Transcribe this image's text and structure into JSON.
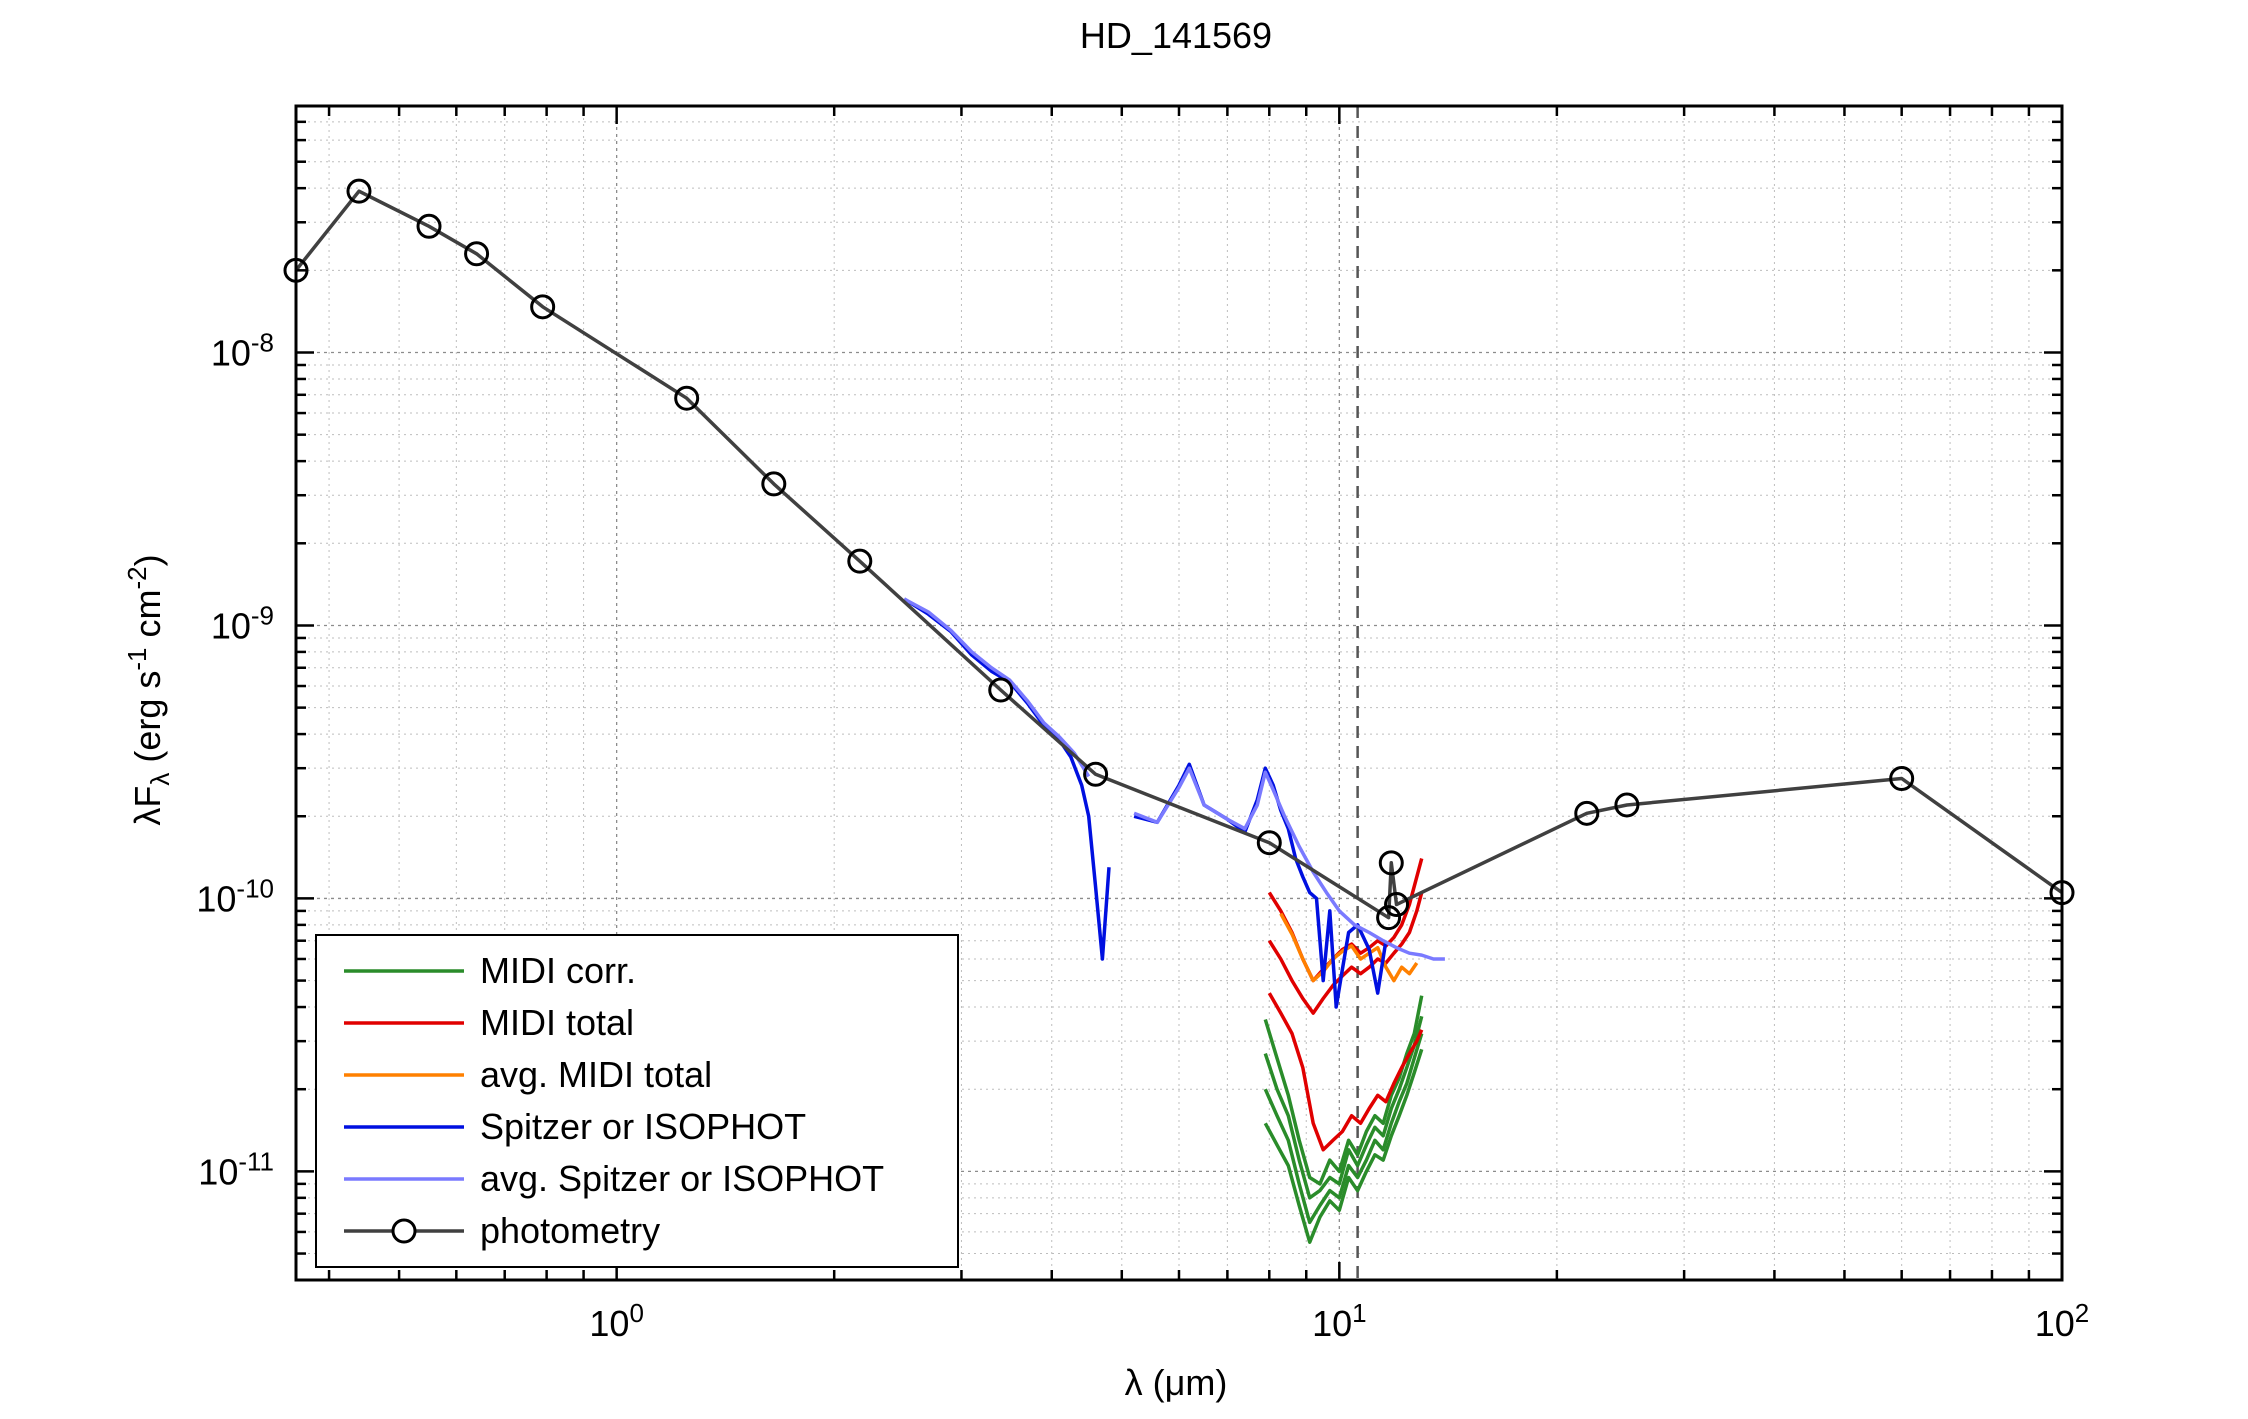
{
  "chart_data": {
    "type": "line",
    "title": "HD_141569",
    "xlabel": "λ (μm)",
    "ylabel": "λF_λ (erg s^-1 cm^-2)",
    "xscale": "log",
    "yscale": "log",
    "xlim": [
      0.36,
      100
    ],
    "ylim": [
      4e-12,
      8e-08
    ],
    "x_ticks": [
      {
        "value": 1,
        "base": "10",
        "exp": "0"
      },
      {
        "value": 10,
        "base": "10",
        "exp": "1"
      },
      {
        "value": 100,
        "base": "10",
        "exp": "2"
      }
    ],
    "y_ticks": [
      {
        "value": 1e-08,
        "base": "10",
        "exp": "-8"
      },
      {
        "value": 1e-09,
        "base": "10",
        "exp": "-9"
      },
      {
        "value": 1e-10,
        "base": "10",
        "exp": "-10"
      },
      {
        "value": 1e-11,
        "base": "10",
        "exp": "-11"
      }
    ],
    "grid": true,
    "legend_position": "bottom-left",
    "vline": {
      "x": 10.6,
      "style": "dashed",
      "color": "#555555"
    },
    "series": [
      {
        "name": "photometry",
        "color": "#404040",
        "marker": "circle",
        "x": [
          0.36,
          0.44,
          0.55,
          0.64,
          0.79,
          1.25,
          1.65,
          2.17,
          3.4,
          4.6,
          8.0,
          11.7,
          11.8,
          12.0,
          22.0,
          25.0,
          60.0,
          100.0
        ],
        "y": [
          2e-08,
          3.9e-08,
          2.9e-08,
          2.3e-08,
          1.47e-08,
          6.8e-09,
          3.3e-09,
          1.72e-09,
          5.8e-10,
          2.85e-10,
          1.6e-10,
          8.5e-11,
          1.35e-10,
          9.5e-11,
          2.05e-10,
          2.2e-10,
          2.75e-10,
          1.05e-10
        ]
      },
      {
        "name": "MIDI corr.",
        "color": "#2a8c2a",
        "lines": [
          {
            "x": [
              7.9,
              8.2,
              8.5,
              8.8,
              9.1,
              9.4,
              9.7,
              10.0,
              10.3,
              10.6,
              10.9,
              11.2,
              11.5,
              11.8,
              12.1,
              12.4,
              12.7,
              13.0
            ],
            "y": [
              3.6e-11,
              2.6e-11,
              1.9e-11,
              1.3e-11,
              9.5e-12,
              9e-12,
              1.1e-11,
              1e-11,
              1.3e-11,
              1.15e-11,
              1.4e-11,
              1.6e-11,
              1.5e-11,
              1.9e-11,
              2.2e-11,
              2.7e-11,
              3.2e-11,
              4.4e-11
            ]
          },
          {
            "x": [
              7.9,
              8.2,
              8.5,
              8.8,
              9.1,
              9.4,
              9.7,
              10.0,
              10.3,
              10.6,
              10.9,
              11.2,
              11.5,
              11.8,
              12.1,
              12.4,
              12.7,
              13.0
            ],
            "y": [
              2.7e-11,
              2e-11,
              1.6e-11,
              1.1e-11,
              8e-12,
              8.5e-12,
              9.5e-12,
              9e-12,
              1.2e-11,
              1.05e-11,
              1.25e-11,
              1.45e-11,
              1.35e-11,
              1.7e-11,
              2e-11,
              2.4e-11,
              2.9e-11,
              3.7e-11
            ]
          },
          {
            "x": [
              7.9,
              8.2,
              8.5,
              8.8,
              9.1,
              9.4,
              9.7,
              10.0,
              10.3,
              10.6,
              10.9,
              11.2,
              11.5,
              11.8,
              12.1,
              12.4,
              12.7,
              13.0
            ],
            "y": [
              2e-11,
              1.6e-11,
              1.3e-11,
              9e-12,
              6.5e-12,
              7.5e-12,
              8.5e-12,
              8e-12,
              1.05e-11,
              9.5e-12,
              1.1e-11,
              1.3e-11,
              1.2e-11,
              1.5e-11,
              1.8e-11,
              2.1e-11,
              2.6e-11,
              3.2e-11
            ]
          },
          {
            "x": [
              7.9,
              8.2,
              8.5,
              8.8,
              9.1,
              9.4,
              9.7,
              10.0,
              10.3,
              10.6,
              10.9,
              11.2,
              11.5,
              11.8,
              12.1,
              12.4,
              12.7,
              13.0
            ],
            "y": [
              1.5e-11,
              1.25e-11,
              1.05e-11,
              7.5e-12,
              5.5e-12,
              6.8e-12,
              7.8e-12,
              7.2e-12,
              9.5e-12,
              8.5e-12,
              1e-11,
              1.15e-11,
              1.1e-11,
              1.35e-11,
              1.6e-11,
              1.9e-11,
              2.3e-11,
              2.8e-11
            ]
          }
        ]
      },
      {
        "name": "MIDI total",
        "color": "#e00000",
        "lines": [
          {
            "x": [
              8.0,
              8.3,
              8.6,
              8.9,
              9.2,
              9.5,
              9.8,
              10.1,
              10.4,
              10.7,
              11.0,
              11.3,
              11.6,
              11.9,
              12.2,
              12.5,
              12.8,
              13.0
            ],
            "y": [
              1.05e-10,
              9e-11,
              7.5e-11,
              6e-11,
              5e-11,
              5.5e-11,
              6e-11,
              6.5e-11,
              6.8e-11,
              6.3e-11,
              6.6e-11,
              7e-11,
              6.7e-11,
              7.2e-11,
              8e-11,
              9.5e-11,
              1.2e-10,
              1.4e-10
            ]
          },
          {
            "x": [
              8.0,
              8.3,
              8.6,
              8.9,
              9.2,
              9.5,
              9.8,
              10.1,
              10.4,
              10.7,
              11.0,
              11.3,
              11.6,
              11.9,
              12.2,
              12.5,
              12.8,
              13.0
            ],
            "y": [
              7e-11,
              6e-11,
              5e-11,
              4.3e-11,
              3.8e-11,
              4.3e-11,
              4.8e-11,
              5.2e-11,
              5.6e-11,
              5.3e-11,
              5.6e-11,
              6e-11,
              5.8e-11,
              6.3e-11,
              6.8e-11,
              7.5e-11,
              9e-11,
              1.05e-10
            ]
          },
          {
            "x": [
              8.0,
              8.3,
              8.6,
              8.9,
              9.2,
              9.5,
              9.8,
              10.1,
              10.4,
              10.7,
              11.0,
              11.3,
              11.6,
              11.9,
              12.2,
              12.5,
              12.8,
              13.0
            ],
            "y": [
              4.5e-11,
              3.8e-11,
              3.2e-11,
              2.4e-11,
              1.5e-11,
              1.2e-11,
              1.3e-11,
              1.4e-11,
              1.6e-11,
              1.5e-11,
              1.7e-11,
              1.9e-11,
              1.8e-11,
              2.1e-11,
              2.4e-11,
              2.7e-11,
              3e-11,
              3.3e-11
            ]
          }
        ]
      },
      {
        "name": "avg. MIDI total",
        "color": "#ff8000",
        "lines": [
          {
            "x": [
              8.3,
              8.6,
              8.9,
              9.2,
              9.5,
              9.8,
              10.1,
              10.4,
              10.7,
              11.0,
              11.3,
              11.6,
              11.9,
              12.2,
              12.5,
              12.8
            ],
            "y": [
              8.8e-11,
              7.4e-11,
              6e-11,
              5e-11,
              5.4e-11,
              6e-11,
              6.4e-11,
              6.7e-11,
              6e-11,
              6.3e-11,
              6.6e-11,
              5.6e-11,
              5e-11,
              5.6e-11,
              5.3e-11,
              5.8e-11
            ]
          }
        ]
      },
      {
        "name": "Spitzer or ISOPHOT",
        "color": "#0010e0",
        "lines": [
          {
            "x": [
              2.5,
              2.7,
              2.9,
              3.1,
              3.3,
              3.5,
              3.7,
              3.9,
              4.1,
              4.25,
              4.4,
              4.5,
              4.6,
              4.7,
              4.8
            ],
            "y": [
              1.25e-09,
              1.1e-09,
              9.5e-10,
              7.8e-10,
              6.8e-10,
              6.2e-10,
              5.2e-10,
              4.3e-10,
              3.8e-10,
              3.3e-10,
              2.6e-10,
              2e-10,
              1.1e-10,
              6e-11,
              1.3e-10
            ]
          },
          {
            "x": [
              5.2,
              5.6,
              6.0,
              6.2,
              6.5,
              7.0,
              7.4,
              7.7,
              7.9,
              8.1,
              8.3,
              8.5,
              8.7,
              8.9,
              9.1,
              9.3,
              9.5,
              9.7,
              9.9,
              10.1,
              10.3,
              10.6,
              11.0,
              11.3,
              11.6
            ],
            "y": [
              2e-10,
              1.9e-10,
              2.6e-10,
              3.1e-10,
              2.2e-10,
              1.95e-10,
              1.75e-10,
              2.3e-10,
              3e-10,
              2.6e-10,
              2.1e-10,
              1.8e-10,
              1.4e-10,
              1.2e-10,
              1.05e-10,
              1e-10,
              5e-11,
              9e-11,
              4e-11,
              5.5e-11,
              7.5e-11,
              8e-11,
              6.5e-11,
              4.5e-11,
              7e-11
            ]
          }
        ]
      },
      {
        "name": "avg. Spitzer or ISOPHOT",
        "color": "#7a7aff",
        "lines": [
          {
            "x": [
              2.5,
              2.7,
              2.9,
              3.1,
              3.3,
              3.5,
              3.7,
              3.9,
              4.1,
              4.3,
              4.5
            ],
            "y": [
              1.25e-09,
              1.12e-09,
              9.6e-10,
              8e-10,
              7e-10,
              6.3e-10,
              5.3e-10,
              4.4e-10,
              3.9e-10,
              3.4e-10,
              2.8e-10
            ]
          },
          {
            "x": [
              5.2,
              5.6,
              6.0,
              6.2,
              6.5,
              7.0,
              7.4,
              7.7,
              7.9,
              8.1,
              8.4,
              8.8,
              9.2,
              9.6,
              10.0,
              10.5,
              11.0,
              11.5,
              12.0,
              12.5,
              13.0,
              13.5,
              14.0
            ],
            "y": [
              2.05e-10,
              1.9e-10,
              2.55e-10,
              3e-10,
              2.2e-10,
              1.95e-10,
              1.8e-10,
              2.2e-10,
              2.9e-10,
              2.5e-10,
              2e-10,
              1.55e-10,
              1.25e-10,
              1.05e-10,
              9e-11,
              8e-11,
              7.5e-11,
              7e-11,
              6.6e-11,
              6.3e-11,
              6.2e-11,
              6e-11,
              6e-11
            ]
          }
        ]
      }
    ]
  }
}
